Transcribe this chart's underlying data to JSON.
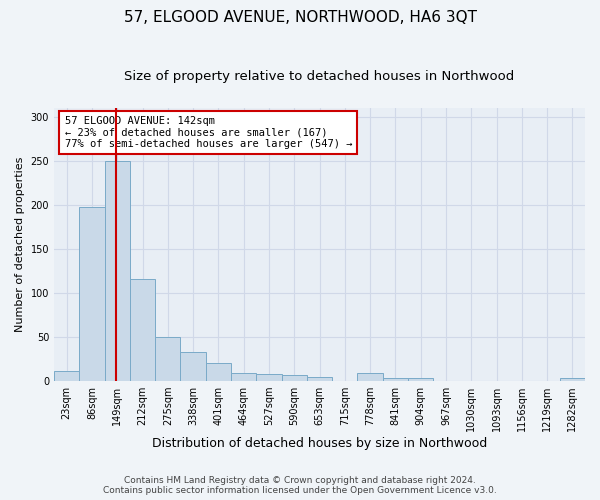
{
  "title": "57, ELGOOD AVENUE, NORTHWOOD, HA6 3QT",
  "subtitle": "Size of property relative to detached houses in Northwood",
  "xlabel": "Distribution of detached houses by size in Northwood",
  "ylabel": "Number of detached properties",
  "bar_labels": [
    "23sqm",
    "86sqm",
    "149sqm",
    "212sqm",
    "275sqm",
    "338sqm",
    "401sqm",
    "464sqm",
    "527sqm",
    "590sqm",
    "653sqm",
    "715sqm",
    "778sqm",
    "841sqm",
    "904sqm",
    "967sqm",
    "1030sqm",
    "1093sqm",
    "1156sqm",
    "1219sqm",
    "1282sqm"
  ],
  "bar_values": [
    11,
    197,
    250,
    116,
    50,
    33,
    21,
    9,
    8,
    7,
    5,
    0,
    9,
    4,
    3,
    0,
    0,
    0,
    0,
    0,
    3
  ],
  "bar_color": "#c9d9e8",
  "bar_edge_color": "#7aaac8",
  "vline_pos": 1.97,
  "annotation_title": "57 ELGOOD AVENUE: 142sqm",
  "annotation_line1": "← 23% of detached houses are smaller (167)",
  "annotation_line2": "77% of semi-detached houses are larger (547) →",
  "annotation_box_facecolor": "#ffffff",
  "annotation_box_edgecolor": "#cc0000",
  "vline_color": "#cc0000",
  "ylim": [
    0,
    310
  ],
  "yticks": [
    0,
    50,
    100,
    150,
    200,
    250,
    300
  ],
  "grid_color": "#d0d8e8",
  "bg_color": "#e8eef5",
  "fig_facecolor": "#f0f4f8",
  "footer_line1": "Contains HM Land Registry data © Crown copyright and database right 2024.",
  "footer_line2": "Contains public sector information licensed under the Open Government Licence v3.0.",
  "title_fontsize": 11,
  "subtitle_fontsize": 9.5,
  "ylabel_fontsize": 8,
  "xlabel_fontsize": 9,
  "tick_fontsize": 7,
  "annotation_fontsize": 7.5,
  "footer_fontsize": 6.5
}
